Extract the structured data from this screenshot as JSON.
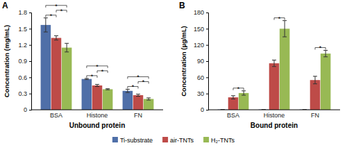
{
  "chart_data": [
    {
      "type": "bar",
      "title": "A",
      "x_label": "Unbound protein",
      "y_label": "Concentration (mg/mL)",
      "categories": [
        "BSA",
        "Histone",
        "FN"
      ],
      "series": [
        {
          "name": "Ti-substrate",
          "color": "#4f6fa8",
          "values": [
            1.57,
            0.57,
            0.35
          ],
          "errors": [
            0.13,
            0.01,
            0.03
          ]
        },
        {
          "name": "air-TNTs",
          "color": "#be4b48",
          "values": [
            1.33,
            0.45,
            0.27
          ],
          "errors": [
            0.04,
            0.02,
            0.02
          ]
        },
        {
          "name": "H₂-TNTs",
          "color": "#98b954",
          "values": [
            1.15,
            0.38,
            0.2
          ],
          "errors": [
            0.08,
            0.01,
            0.02
          ]
        }
      ],
      "ylim": [
        0,
        1.8
      ],
      "yticks": [
        0,
        0.3,
        0.6,
        0.9,
        1.2,
        1.5,
        1.8
      ],
      "legend": "bottom",
      "annotations": [
        {
          "category": "BSA",
          "between": [
            "Ti-substrate",
            "air-TNTs"
          ],
          "text": "*"
        },
        {
          "category": "BSA",
          "between": [
            "air-TNTs",
            "H₂-TNTs"
          ],
          "text": "*"
        },
        {
          "category": "BSA",
          "between": [
            "Ti-substrate",
            "H₂-TNTs"
          ],
          "text": "*"
        },
        {
          "category": "Histone",
          "between": [
            "Ti-substrate",
            "air-TNTs"
          ],
          "text": "*"
        },
        {
          "category": "Histone",
          "between": [
            "air-TNTs",
            "H₂-TNTs"
          ],
          "text": "*"
        },
        {
          "category": "Histone",
          "between": [
            "Ti-substrate",
            "H₂-TNTs"
          ],
          "text": "*"
        },
        {
          "category": "FN",
          "between": [
            "Ti-substrate",
            "air-TNTs"
          ],
          "text": "*"
        },
        {
          "category": "FN",
          "between": [
            "air-TNTs",
            "H₂-TNTs"
          ],
          "text": "*"
        },
        {
          "category": "FN",
          "between": [
            "Ti-substrate",
            "H₂-TNTs"
          ],
          "text": "*"
        }
      ]
    },
    {
      "type": "bar",
      "title": "B",
      "x_label": "Bound protein",
      "y_label": "Concentration (µg/mL)",
      "categories": [
        "BSA",
        "Histone",
        "FN"
      ],
      "series": [
        {
          "name": "Ti-substrate",
          "color": "#4f6fa8",
          "values": [
            0.5,
            0.5,
            0.5
          ],
          "errors": [
            0,
            0,
            0
          ]
        },
        {
          "name": "air-TNTs",
          "color": "#be4b48",
          "values": [
            23,
            86,
            55
          ],
          "errors": [
            3,
            6,
            7
          ]
        },
        {
          "name": "H₂-TNTs",
          "color": "#98b954",
          "values": [
            31,
            150,
            104
          ],
          "errors": [
            4,
            15,
            6
          ]
        }
      ],
      "ylim": [
        0,
        180
      ],
      "yticks": [
        0,
        30,
        60,
        90,
        120,
        150,
        180
      ],
      "annotations": [
        {
          "category": "BSA",
          "between": [
            "air-TNTs",
            "H₂-TNTs"
          ],
          "text": "*"
        },
        {
          "category": "Histone",
          "between": [
            "air-TNTs",
            "H₂-TNTs"
          ],
          "text": "*"
        },
        {
          "category": "FN",
          "between": [
            "air-TNTs",
            "H₂-TNTs"
          ],
          "text": "*"
        }
      ]
    }
  ]
}
